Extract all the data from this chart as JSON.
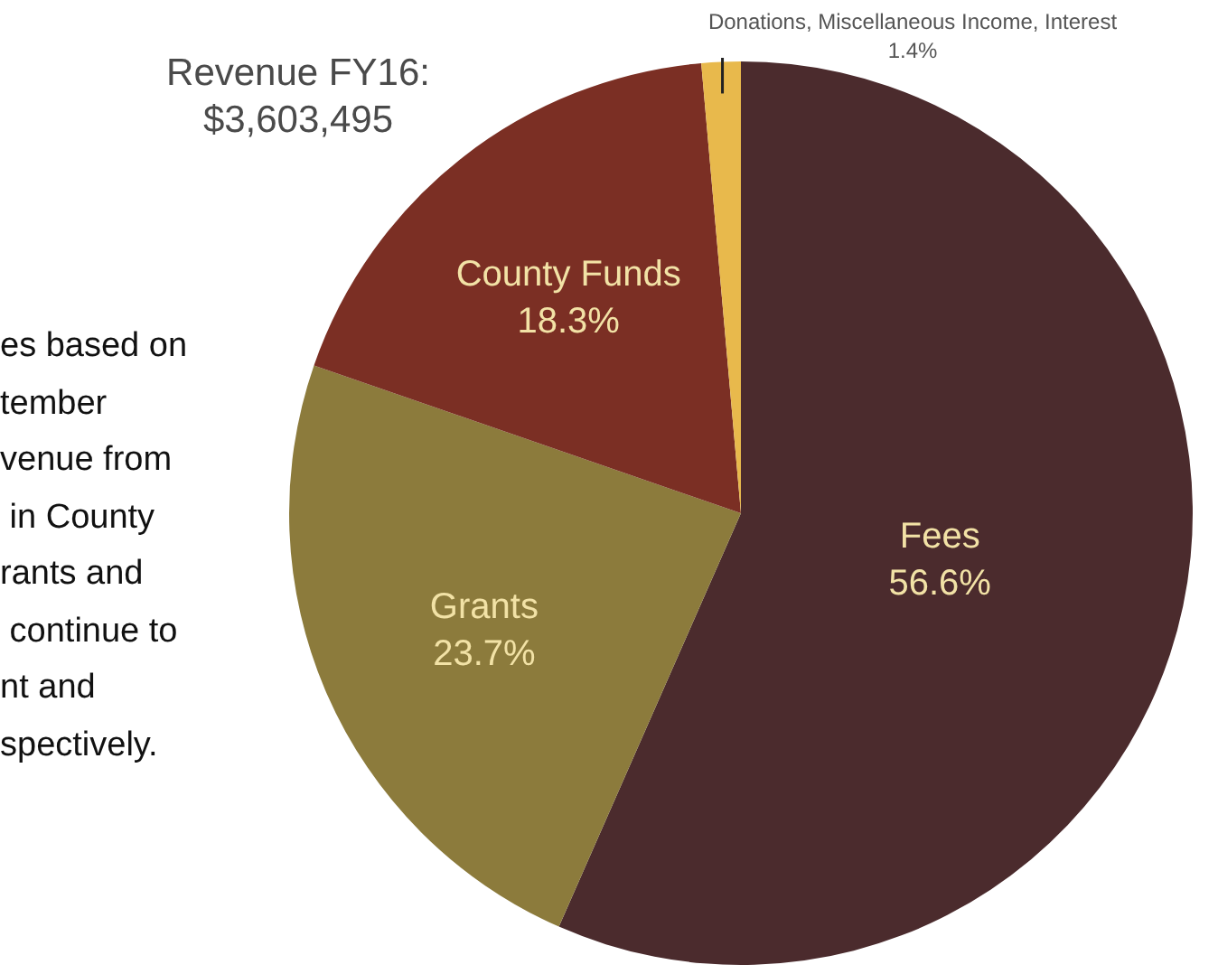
{
  "chart_data": {
    "type": "pie",
    "title": "Revenue FY16:\n$3,603,495",
    "categories": [
      "Fees",
      "Grants",
      "County Funds",
      "Donations, Miscellaneous Income, Interest"
    ],
    "values": [
      56.6,
      23.7,
      18.3,
      1.4
    ],
    "value_labels": [
      "56.6%",
      "23.7%",
      "18.3%",
      "1.4%"
    ],
    "colors": [
      "#4b2b2d",
      "#8c7b3c",
      "#7b2f24",
      "#e8b94c"
    ],
    "annotations": [
      "es based on\ntember\nvenue from\n in County\nrants and\n continue to\nnt and\nspectively."
    ],
    "legend": false
  }
}
